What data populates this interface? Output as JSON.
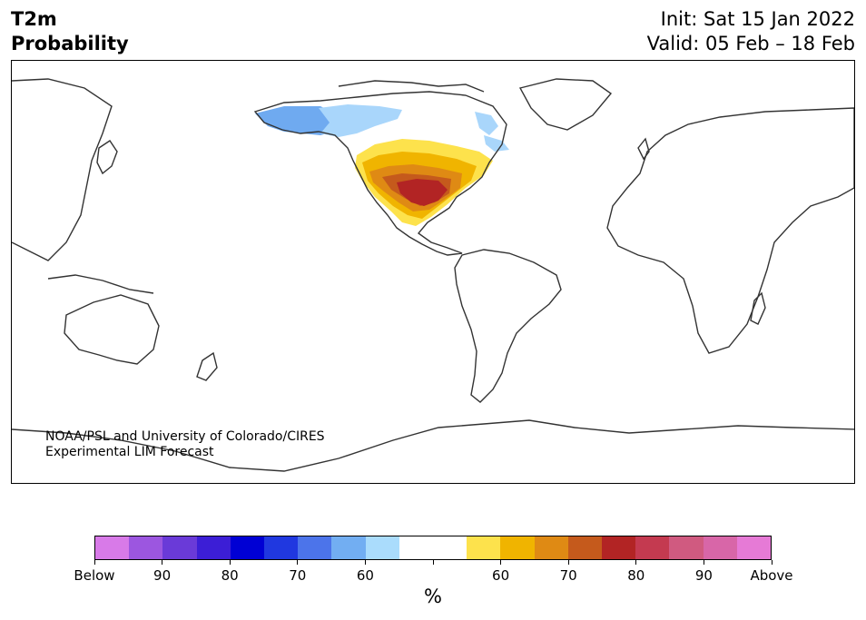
{
  "header": {
    "title_line1": "T2m",
    "title_line2": "Probability",
    "init": "Init: Sat 15 Jan 2022",
    "valid": "Valid: 05 Feb – 18 Feb"
  },
  "map": {
    "credit_line1": "NOAA/PSL and University of Colorado/CIRES",
    "credit_line2": "Experimental LIM Forecast",
    "anomaly_regions": [
      {
        "name": "alaska-below",
        "category": "below-70",
        "color": "#6faaf0"
      },
      {
        "name": "canada-below",
        "category": "below-60",
        "color": "#a9d6fb"
      },
      {
        "name": "us-above-outer",
        "category": "above-50",
        "color": "#fde24c"
      },
      {
        "name": "us-above-60",
        "category": "above-60",
        "color": "#f0b400"
      },
      {
        "name": "us-above-70",
        "category": "above-70",
        "color": "#df8a14"
      },
      {
        "name": "us-above-80",
        "category": "above-80",
        "color": "#b22424"
      }
    ]
  },
  "colorbar": {
    "unit": "%",
    "colors": [
      "#d87ae8",
      "#9c56e0",
      "#6a3ad8",
      "#3c1ed6",
      "#0000d4",
      "#2038e0",
      "#4c74ea",
      "#72aef2",
      "#aadcfc",
      "#ffffff",
      "#ffffff",
      "#fde24c",
      "#f0b400",
      "#df8a14",
      "#c55a1c",
      "#b22424",
      "#c43a50",
      "#d05a80",
      "#d866a8",
      "#e67ad6"
    ],
    "labels": [
      "Below",
      "90",
      "80",
      "70",
      "60",
      "",
      "60",
      "70",
      "80",
      "90",
      "Above"
    ]
  }
}
